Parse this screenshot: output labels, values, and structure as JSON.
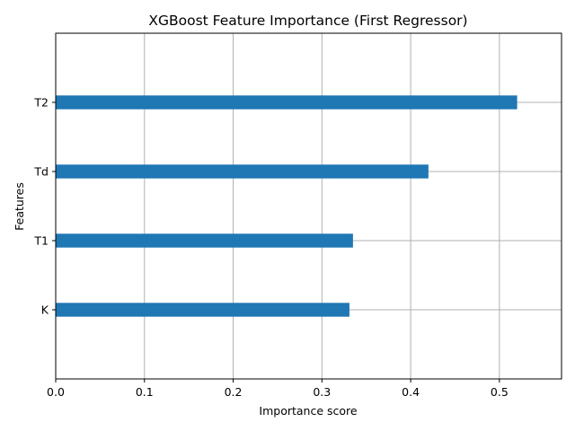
{
  "chart_data": {
    "type": "bar",
    "orientation": "horizontal",
    "title": "XGBoost Feature Importance (First Regressor)",
    "xlabel": "Importance score",
    "ylabel": "Features",
    "categories": [
      "K",
      "T1",
      "Td",
      "T2"
    ],
    "values": [
      0.331,
      0.335,
      0.42,
      0.52
    ],
    "xlim": [
      0,
      0.57
    ],
    "xticks": [
      "0.0",
      "0.1",
      "0.2",
      "0.3",
      "0.4",
      "0.5"
    ],
    "grid": true,
    "bar_color": "#1f77b4",
    "grid_color": "#b0b0b0"
  }
}
